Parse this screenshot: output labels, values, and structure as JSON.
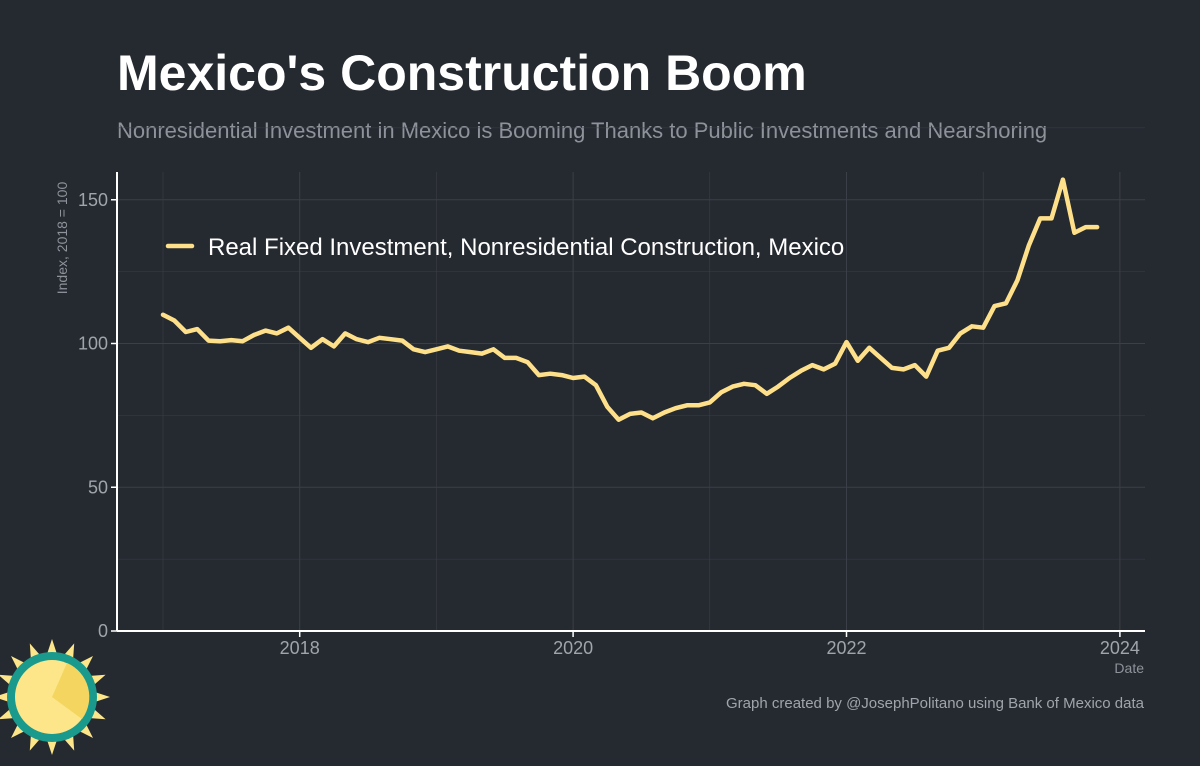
{
  "header": {
    "title": "Mexico's Construction Boom",
    "subtitle": "Nonresidential Investment in Mexico is Booming Thanks to Public Investments and Nearshoring"
  },
  "caption": "Graph created by @JosephPolitano using Bank of Mexico data",
  "colors": {
    "background": "#252930",
    "line": "#ffe08a",
    "grid": "#3b3f47",
    "axis": "#ffffff",
    "logo_teal": "#1a9a8c",
    "logo_yellow": "#fde68a"
  },
  "logo": {
    "icon": "sun-logo-icon"
  },
  "chart_data": {
    "type": "line",
    "title": "Mexico's Construction Boom",
    "xlabel": "Date",
    "ylabel": "Index, 2018 = 100",
    "xlim": [
      2016.65,
      2024.2
    ],
    "ylim": [
      0,
      160
    ],
    "x_ticks": [
      2018,
      2020,
      2022,
      2024
    ],
    "y_ticks": [
      0,
      50,
      100,
      150
    ],
    "grid": true,
    "legend_position": "top-left",
    "series": [
      {
        "name": "Real Fixed Investment, Nonresidential Construction, Mexico",
        "x": [
          2017.0,
          2017.083,
          2017.167,
          2017.25,
          2017.333,
          2017.417,
          2017.5,
          2017.583,
          2017.667,
          2017.75,
          2017.833,
          2017.917,
          2018.0,
          2018.083,
          2018.167,
          2018.25,
          2018.333,
          2018.417,
          2018.5,
          2018.583,
          2018.667,
          2018.75,
          2018.833,
          2018.917,
          2019.0,
          2019.083,
          2019.167,
          2019.25,
          2019.333,
          2019.417,
          2019.5,
          2019.583,
          2019.667,
          2019.75,
          2019.833,
          2019.917,
          2020.0,
          2020.083,
          2020.167,
          2020.25,
          2020.333,
          2020.417,
          2020.5,
          2020.583,
          2020.667,
          2020.75,
          2020.833,
          2020.917,
          2021.0,
          2021.083,
          2021.167,
          2021.25,
          2021.333,
          2021.417,
          2021.5,
          2021.583,
          2021.667,
          2021.75,
          2021.833,
          2021.917,
          2022.0,
          2022.083,
          2022.167,
          2022.25,
          2022.333,
          2022.417,
          2022.5,
          2022.583,
          2022.667,
          2022.75,
          2022.833,
          2022.917,
          2023.0,
          2023.083,
          2023.167,
          2023.25,
          2023.333,
          2023.417,
          2023.5,
          2023.583,
          2023.667,
          2023.75,
          2023.833
        ],
        "values": [
          110,
          108,
          104,
          105,
          101,
          100.8,
          101.2,
          100.8,
          103,
          104.5,
          103.5,
          105.5,
          102,
          98.5,
          101.5,
          99,
          103.5,
          101.5,
          100.5,
          102,
          101.5,
          101,
          98,
          97,
          98,
          99,
          97.5,
          97,
          96.5,
          98,
          95,
          95,
          93.5,
          89,
          89.5,
          89,
          88,
          88.5,
          85.5,
          78,
          73.5,
          75.5,
          76,
          74,
          76,
          77.5,
          78.5,
          78.5,
          79.5,
          83,
          85,
          86,
          85.5,
          82.5,
          85,
          88,
          90.5,
          92.5,
          91,
          93,
          100.5,
          94,
          98.5,
          95,
          91.5,
          91,
          92.5,
          88.5,
          97.5,
          98.5,
          103.5,
          106,
          105.5,
          113,
          114,
          122,
          134,
          143.5,
          143.5,
          157,
          138.5,
          140.5,
          140.5
        ]
      }
    ]
  }
}
